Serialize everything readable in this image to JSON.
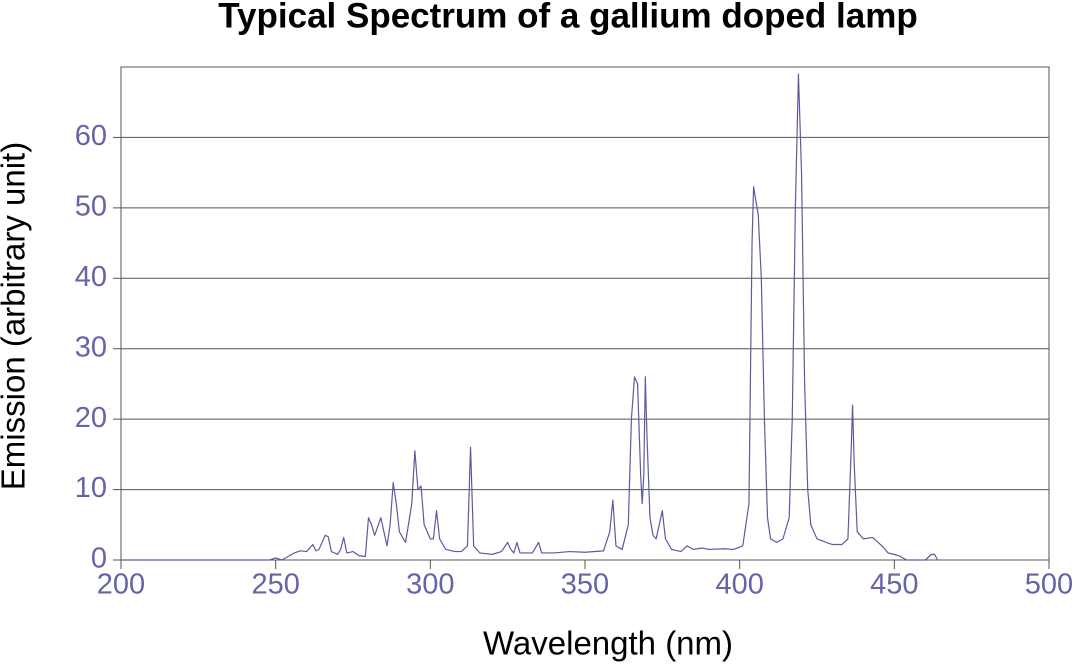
{
  "chart_data": {
    "type": "line",
    "title": "Typical Spectrum of a gallium doped lamp",
    "xlabel": "Wavelength (nm)",
    "ylabel": "Emission (arbitrary unit)",
    "xlim": [
      200,
      500
    ],
    "xticks": [
      200,
      250,
      300,
      350,
      400,
      450,
      500
    ],
    "ylim": [
      0,
      70
    ],
    "yticks": [
      0,
      10,
      20,
      30,
      40,
      50,
      60
    ],
    "grid": true,
    "color": "#5b5b9e",
    "x": [
      200,
      248,
      250,
      252,
      254,
      256,
      258,
      260,
      262,
      263,
      264,
      266,
      267,
      268,
      270,
      271,
      272,
      273,
      275,
      277,
      279,
      280,
      281,
      282,
      284,
      285,
      286,
      287,
      288,
      289,
      290,
      292,
      294,
      295,
      296,
      297,
      298,
      300,
      301,
      302,
      303,
      305,
      308,
      310,
      312,
      313,
      314,
      316,
      320,
      323,
      325,
      326,
      327,
      328,
      329,
      333,
      335,
      336,
      340,
      345,
      350,
      356,
      358,
      359,
      360,
      362,
      364,
      365,
      366,
      367,
      368,
      368.5,
      369,
      369.5,
      370,
      371,
      372,
      373,
      374,
      375,
      376,
      378,
      381,
      383,
      385,
      388,
      390,
      395,
      398,
      401,
      403,
      404,
      404.5,
      406,
      407,
      408,
      409,
      410,
      412,
      414,
      416,
      417,
      418,
      419,
      420,
      421,
      422,
      423,
      425,
      428,
      430,
      433,
      435,
      436,
      436.5,
      437,
      438,
      440,
      443,
      446,
      448,
      450,
      452,
      454,
      460,
      462,
      463,
      464
    ],
    "values": [
      0,
      0,
      0.3,
      0,
      0.5,
      1,
      1.3,
      1.2,
      2.2,
      1.3,
      1.5,
      3.5,
      3.3,
      1.2,
      0.8,
      1.5,
      3.2,
      1,
      1.2,
      0.6,
      0.5,
      6,
      5,
      3.5,
      6,
      4,
      2,
      5,
      11,
      8,
      4,
      2.5,
      8,
      15.5,
      10,
      10.5,
      5,
      3,
      3,
      7,
      3,
      1.5,
      1.2,
      1.2,
      2,
      16,
      2,
      1,
      0.8,
      1.2,
      2.5,
      1.5,
      1,
      2.5,
      1,
      1,
      2.5,
      1,
      1,
      1.2,
      1.1,
      1.3,
      4,
      8.5,
      2,
      1.5,
      5,
      20,
      26,
      25,
      12,
      8,
      12,
      26,
      18,
      6,
      3.5,
      3,
      5,
      7,
      3,
      1.5,
      1.2,
      2,
      1.5,
      1.7,
      1.5,
      1.6,
      1.5,
      2,
      8,
      45,
      53,
      49,
      40,
      20,
      6,
      3,
      2.5,
      3,
      6,
      20,
      50,
      69,
      55,
      25,
      10,
      5,
      3,
      2.5,
      2.2,
      2.2,
      3,
      15,
      22,
      14,
      4,
      3,
      3.2,
      2,
      1,
      0.8,
      0.5,
      0,
      0,
      0.8,
      0.8,
      0
    ]
  }
}
